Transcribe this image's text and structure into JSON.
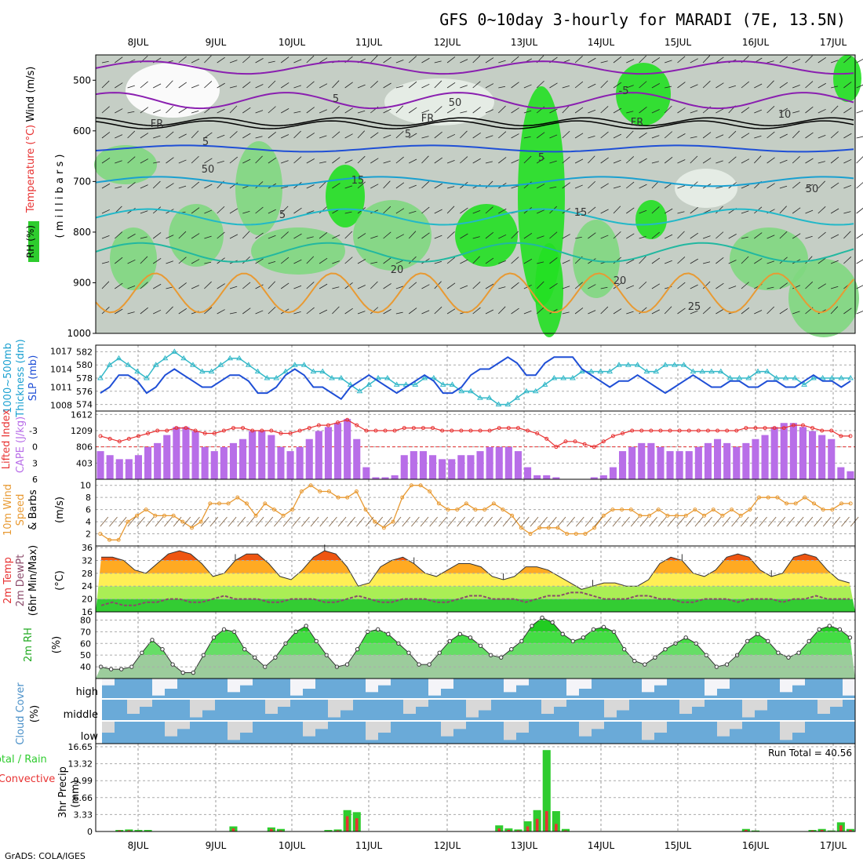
{
  "title": "GFS 0~10day 3-hourly for MARADI (7E, 13.5N)",
  "credit": "GrADS: COLA/IGES",
  "run_total_label": "Run Total = 40.56",
  "dates": [
    "8JUL",
    "9JUL",
    "10JUL",
    "11JUL",
    "12JUL",
    "13JUL",
    "14JUL",
    "15JUL",
    "16JUL",
    "17JUL"
  ],
  "colors": {
    "green": "#2ecc2e",
    "red": "#e83333",
    "purple": "#b86ee8",
    "orange": "#e89a33",
    "blue": "#1f4fd6",
    "cyan": "#33b8c8",
    "cloud": "#6aaad8",
    "grey": "#d8d8d8"
  },
  "panel_labels": {
    "upper": {
      "wind": "Wind (m/s)",
      "temp": "Temperature (°C)",
      "rh": "RH (%)",
      "mb": "( m i l l i b a r s )"
    },
    "slp": {
      "thick1": "1000~500mb",
      "thick2": "Thickness (dm)",
      "slp": "SLP (mb)"
    },
    "cape": {
      "li": "Lifted Index",
      "cape": "CAPE (J/kg)"
    },
    "wind10": {
      "l1": "10m Wind",
      "l2": "Speed",
      "l3": "& Barbs",
      "unit": "(m/s)"
    },
    "temp2m": {
      "l1": "2m Temp",
      "l2": "2m DewPt",
      "l3": "(6hr Min/Max)",
      "unit": "(°C)"
    },
    "rh2m": {
      "l1": "2m RH",
      "unit": "(%)"
    },
    "cloud": {
      "l1": "Cloud Cover",
      "unit": "(%)",
      "high": "high",
      "middle": "middle",
      "low": "low"
    },
    "precip": {
      "l1": "Total / Rain",
      "l2": "Convective",
      "l3": "3hr Precip",
      "unit": "(mm)"
    }
  },
  "upper_contour_labels": [
    "5",
    "-5",
    "FR",
    "FR",
    "FR",
    "5",
    "5",
    "15",
    "5",
    "15",
    "20",
    "20",
    "25",
    "50",
    "50",
    "50",
    "10",
    "5"
  ],
  "chart_data": [
    {
      "name": "upper-air",
      "type": "heatmap",
      "ylabel": "( m i l l i b a r s )",
      "y_ticks": [
        500,
        600,
        700,
        800,
        900,
        1000
      ],
      "ylim": [
        1000,
        450
      ],
      "series": [
        {
          "name": "FR"
        },
        {
          "name": "5"
        },
        {
          "name": "-5"
        },
        {
          "name": "15"
        },
        {
          "name": "20"
        },
        {
          "name": "25"
        }
      ]
    },
    {
      "name": "slp-thickness",
      "type": "line",
      "y_left_ticks": [
        574,
        576,
        578,
        580,
        582
      ],
      "y_right_ticks": [
        1008,
        1011,
        1014,
        1017
      ],
      "series": [
        {
          "name": "Thickness (dm)",
          "values": [
            578,
            580,
            581,
            580,
            579,
            578,
            580,
            581,
            582,
            581,
            580,
            579,
            579,
            580,
            581,
            581,
            580,
            579,
            578,
            578,
            579,
            580,
            580,
            579,
            579,
            578,
            578,
            577,
            576,
            577,
            578,
            578,
            577,
            577,
            577,
            578,
            578,
            577,
            577,
            576,
            576,
            575,
            575,
            574,
            574,
            575,
            576,
            576,
            577,
            578,
            578,
            578,
            579,
            579,
            579,
            579,
            580,
            580,
            580,
            579,
            579,
            580,
            580,
            580,
            579,
            579,
            579,
            579,
            578,
            578,
            578,
            579,
            579,
            578,
            578,
            578,
            577,
            578,
            578,
            578,
            578,
            578
          ]
        },
        {
          "name": "SLP (mb)",
          "values": [
            1010,
            1011,
            1013,
            1013,
            1012,
            1010,
            1011,
            1013,
            1014,
            1013,
            1012,
            1011,
            1011,
            1012,
            1013,
            1013,
            1012,
            1010,
            1010,
            1011,
            1013,
            1014,
            1013,
            1011,
            1011,
            1010,
            1009,
            1011,
            1012,
            1013,
            1012,
            1011,
            1010,
            1011,
            1012,
            1013,
            1012,
            1010,
            1010,
            1011,
            1013,
            1014,
            1014,
            1015,
            1016,
            1015,
            1013,
            1013,
            1015,
            1016,
            1016,
            1016,
            1014,
            1013,
            1012,
            1011,
            1012,
            1012,
            1013,
            1012,
            1011,
            1010,
            1011,
            1012,
            1013,
            1012,
            1011,
            1011,
            1012,
            1012,
            1011,
            1011,
            1012,
            1012,
            1011,
            1011,
            1012,
            1013,
            1012,
            1012,
            1011,
            1012
          ]
        }
      ]
    },
    {
      "name": "cape-li",
      "type": "bar",
      "y_left_ticks": [
        6,
        3,
        0,
        -3
      ],
      "y_left_labels": [
        "6",
        "3",
        "0",
        "-3"
      ],
      "y_right_ticks": [
        403,
        806,
        1209,
        1612
      ],
      "series": [
        {
          "name": "CAPE (J/kg)",
          "values": [
            700,
            600,
            500,
            500,
            600,
            800,
            900,
            1100,
            1300,
            1300,
            1200,
            800,
            700,
            800,
            900,
            1000,
            1200,
            1200,
            1100,
            800,
            700,
            800,
            1000,
            1200,
            1300,
            1400,
            1500,
            1000,
            300,
            50,
            50,
            100,
            600,
            700,
            700,
            600,
            500,
            500,
            600,
            600,
            700,
            800,
            800,
            800,
            700,
            300,
            100,
            100,
            50,
            0,
            0,
            0,
            50,
            100,
            300,
            700,
            800,
            900,
            900,
            800,
            700,
            700,
            700,
            800,
            900,
            1000,
            900,
            800,
            900,
            1000,
            1100,
            1300,
            1400,
            1400,
            1300,
            1200,
            1100,
            1000,
            300,
            200
          ]
        },
        {
          "name": "Lifted Index",
          "values": [
            -2,
            -1.5,
            -1,
            -1.5,
            -2,
            -2.5,
            -3,
            -3,
            -3.5,
            -3.5,
            -3,
            -2.5,
            -2.5,
            -3,
            -3.5,
            -3.5,
            -3,
            -3,
            -3,
            -2.5,
            -2.5,
            -3,
            -3.5,
            -4,
            -4,
            -4.5,
            -5,
            -4,
            -3,
            -3,
            -3,
            -3,
            -3.5,
            -3.5,
            -3.5,
            -3.5,
            -3,
            -3,
            -3,
            -3,
            -3,
            -3,
            -3.5,
            -3.5,
            -3.5,
            -3,
            -2.5,
            -1.5,
            0,
            -1,
            -1,
            -0.5,
            0,
            -1,
            -2,
            -2.5,
            -3,
            -3,
            -3,
            -3,
            -3,
            -3,
            -3,
            -3,
            -3,
            -3,
            -3,
            -3,
            -3.5,
            -3.5,
            -3.5,
            -3.5,
            -3.5,
            -4,
            -4,
            -3.5,
            -3,
            -3,
            -2,
            -2
          ]
        }
      ]
    },
    {
      "name": "wind10m",
      "type": "line",
      "y_ticks": [
        2,
        4,
        6,
        8,
        10
      ],
      "series": [
        {
          "name": "Speed",
          "values": [
            2,
            1,
            1,
            4,
            5,
            6,
            5,
            5,
            5,
            4,
            3,
            4,
            7,
            7,
            7,
            8,
            7,
            5,
            7,
            6,
            5,
            6,
            9,
            10,
            9,
            9,
            8,
            8,
            9,
            6,
            4,
            3,
            4,
            8,
            10,
            10,
            9,
            7,
            6,
            6,
            7,
            6,
            6,
            7,
            6,
            5,
            3,
            2,
            3,
            3,
            3,
            2,
            2,
            2,
            3,
            5,
            6,
            6,
            6,
            5,
            5,
            6,
            5,
            5,
            5,
            6,
            5,
            6,
            5,
            6,
            5,
            6,
            8,
            8,
            8,
            7,
            7,
            8,
            7,
            6,
            6,
            7,
            7
          ]
        }
      ]
    },
    {
      "name": "temp2m",
      "type": "area",
      "y_ticks": [
        16,
        20,
        24,
        28,
        32,
        36
      ],
      "series": [
        {
          "name": "2m Temp",
          "values": [
            33,
            33,
            32,
            29,
            28,
            31,
            34,
            35,
            34,
            31,
            27,
            28,
            32,
            34,
            34,
            31,
            27,
            26,
            29,
            33,
            35,
            34,
            30,
            24,
            25,
            30,
            32,
            33,
            31,
            28,
            27,
            29,
            31,
            31,
            30,
            27,
            26,
            27,
            30,
            30,
            29,
            27,
            25,
            23,
            24,
            25,
            25,
            24,
            24,
            26,
            31,
            33,
            32,
            28,
            27,
            29,
            33,
            34,
            33,
            29,
            27,
            28,
            33,
            34,
            33,
            29,
            26,
            25
          ]
        },
        {
          "name": "2m DewPt",
          "values": [
            18,
            19,
            18,
            18,
            19,
            19,
            20,
            20,
            19,
            19,
            20,
            21,
            20,
            20,
            20,
            19,
            19,
            20,
            20,
            20,
            19,
            19,
            20,
            21,
            20,
            19,
            19,
            20,
            20,
            20,
            19,
            19,
            20,
            21,
            21,
            20,
            20,
            20,
            19,
            20,
            21,
            21,
            22,
            22,
            21,
            20,
            20,
            20,
            21,
            21,
            20,
            20,
            19,
            19,
            20,
            20,
            20,
            19,
            20,
            20,
            20,
            19,
            20,
            20,
            21,
            20,
            20,
            20
          ]
        }
      ]
    },
    {
      "name": "rh2m",
      "type": "area",
      "y_ticks": [
        40,
        50,
        60,
        70,
        80
      ],
      "series": [
        {
          "name": "2m RH",
          "values": [
            40,
            38,
            38,
            40,
            52,
            63,
            55,
            42,
            35,
            35,
            50,
            65,
            72,
            70,
            55,
            48,
            40,
            48,
            60,
            70,
            75,
            62,
            50,
            40,
            42,
            55,
            70,
            72,
            68,
            60,
            52,
            42,
            42,
            52,
            62,
            68,
            65,
            58,
            50,
            48,
            55,
            62,
            75,
            82,
            78,
            68,
            62,
            65,
            72,
            74,
            70,
            55,
            45,
            42,
            48,
            55,
            60,
            65,
            60,
            50,
            40,
            42,
            50,
            62,
            68,
            62,
            52,
            48,
            52,
            62,
            72,
            75,
            72,
            65
          ]
        }
      ]
    },
    {
      "name": "cloud",
      "type": "heatmap",
      "categories": [
        "high",
        "middle",
        "low"
      ]
    },
    {
      "name": "precip",
      "type": "bar",
      "y_ticks": [
        0,
        3.33,
        6.66,
        9.99,
        13.32,
        16.65
      ],
      "series": [
        {
          "name": "Total",
          "values": [
            0,
            0,
            0.3,
            0.4,
            0.3,
            0.3,
            0,
            0,
            0,
            0,
            0,
            0,
            0,
            0,
            1.0,
            0,
            0,
            0,
            0.8,
            0.5,
            0,
            0,
            0,
            0,
            0.3,
            0.4,
            4.2,
            3.8,
            0,
            0,
            0,
            0,
            0,
            0,
            0,
            0,
            0,
            0,
            0,
            0,
            0,
            0,
            1.2,
            0.6,
            0.4,
            2.0,
            4.2,
            16.0,
            4.0,
            0.5,
            0,
            0,
            0,
            0,
            0,
            0,
            0,
            0,
            0,
            0,
            0,
            0,
            0,
            0,
            0,
            0,
            0,
            0,
            0.5,
            0.2,
            0,
            0,
            0,
            0,
            0,
            0.3,
            0.5,
            0.2,
            1.8,
            0.5
          ]
        },
        {
          "name": "Convective",
          "values": [
            0,
            0,
            0.2,
            0.2,
            0.1,
            0.1,
            0,
            0,
            0,
            0,
            0,
            0,
            0,
            0,
            0.6,
            0,
            0,
            0,
            0.5,
            0.2,
            0,
            0,
            0,
            0,
            0.1,
            0.2,
            3.0,
            2.6,
            0,
            0,
            0,
            0,
            0,
            0,
            0,
            0,
            0,
            0,
            0,
            0,
            0,
            0,
            0.6,
            0.3,
            0.2,
            1.0,
            2.5,
            4.0,
            1.5,
            0.2,
            0,
            0,
            0,
            0,
            0,
            0,
            0,
            0,
            0,
            0,
            0,
            0,
            0,
            0,
            0,
            0,
            0,
            0,
            0.3,
            0.1,
            0,
            0,
            0,
            0,
            0,
            0.2,
            0.3,
            0.1,
            1.2,
            0.3
          ]
        }
      ]
    }
  ]
}
